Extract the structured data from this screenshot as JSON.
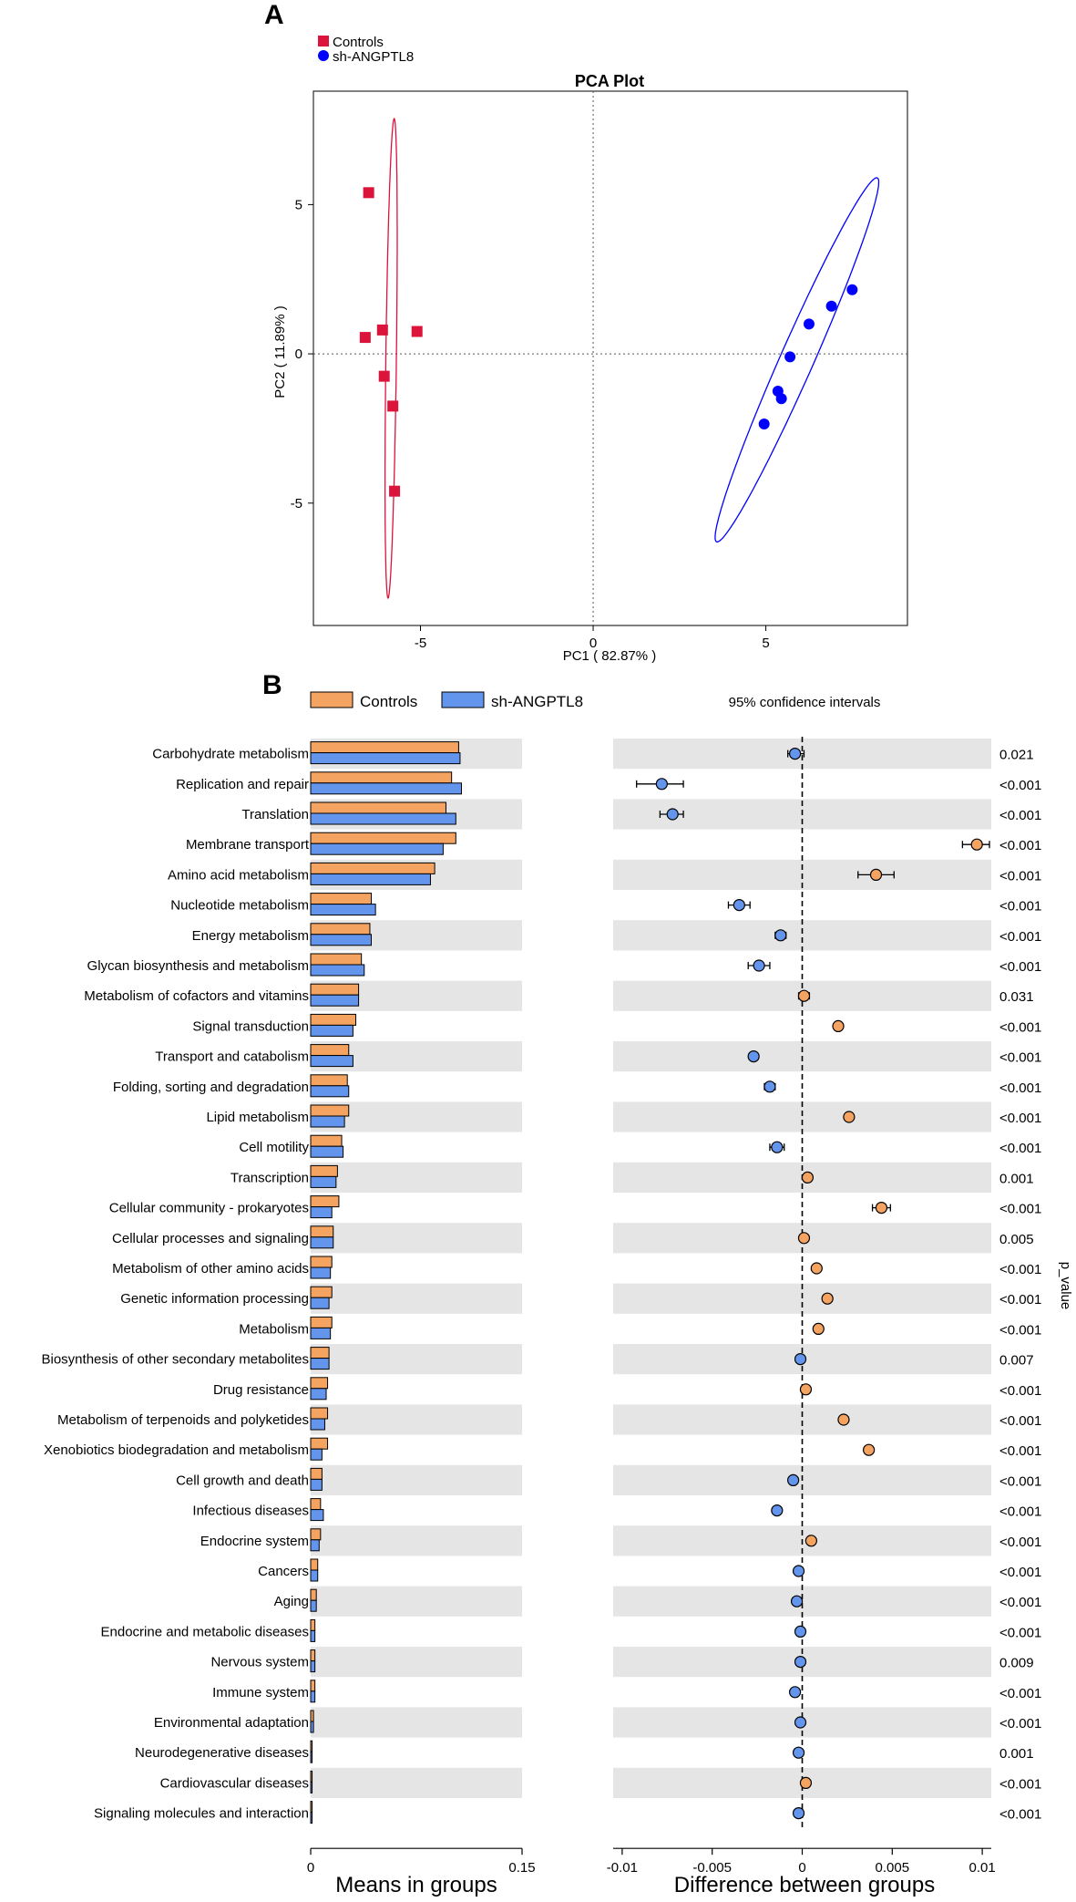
{
  "panel_a_label": "A",
  "panel_b_label": "B",
  "colors": {
    "controls_square": "#dc143c",
    "sh_dot": "#0000ff",
    "controls_bar": "#f4a460",
    "sh_bar": "#6495ed",
    "stripe": "#e5e5e5"
  },
  "chart_data": [
    {
      "type": "scatter",
      "title": "PCA Plot",
      "xlabel": "PC1 ( 82.87% )",
      "ylabel": "PC2 ( 11.89% )",
      "xlim": [
        -8.1,
        9.1
      ],
      "ylim": [
        -9.1,
        8.8
      ],
      "xticks": [
        -5,
        0,
        5
      ],
      "yticks": [
        -5,
        0,
        5
      ],
      "xtick_labels": [
        "-5",
        "0",
        "5"
      ],
      "ytick_labels": [
        "-5",
        "0",
        "5"
      ],
      "legend": [
        "Controls",
        "sh-ANGPTL8"
      ],
      "series": [
        {
          "name": "Controls",
          "marker": "square",
          "points": [
            [
              -6.5,
              5.4
            ],
            [
              -6.6,
              0.55
            ],
            [
              -6.1,
              0.8
            ],
            [
              -5.1,
              0.75
            ],
            [
              -6.05,
              -0.75
            ],
            [
              -5.8,
              -1.75
            ],
            [
              -5.75,
              -4.6
            ]
          ],
          "ellipse": [
            [
              -5.4,
              4.1
            ],
            [
              -6.0,
              0.0
            ],
            [
              -6.3,
              -3.5
            ],
            [
              -5.9,
              -8.2
            ],
            [
              -5.2,
              1.0
            ],
            [
              -4.9,
              -3.0
            ],
            [
              -6.85,
              7.9
            ],
            [
              -6.45,
              3.6
            ]
          ]
        },
        {
          "name": "sh-ANGPTL8",
          "marker": "circle",
          "points": [
            [
              7.5,
              2.15
            ],
            [
              6.9,
              1.6
            ],
            [
              6.25,
              1.0
            ],
            [
              5.7,
              -0.1
            ],
            [
              5.35,
              -1.25
            ],
            [
              5.45,
              -1.5
            ],
            [
              4.95,
              -2.35
            ]
          ],
          "ellipse": [
            [
              8.35,
              4.6
            ],
            [
              3.45,
              -5.0
            ],
            [
              7.3,
              1.2
            ],
            [
              4.6,
              -1.5
            ],
            [
              3.7,
              -3.8
            ],
            [
              8.0,
              2.9
            ]
          ]
        }
      ]
    },
    {
      "type": "bar",
      "orientation": "horizontal",
      "xlabel": "Means in groups",
      "xlim": [
        0,
        0.15
      ],
      "xtick_labels": [
        "0",
        "0.15"
      ],
      "legend": [
        "Controls",
        "sh-ANGPTL8"
      ],
      "categories": [
        "Carbohydrate metabolism",
        "Replication and repair",
        "Translation",
        "Membrane transport",
        "Amino acid metabolism",
        "Nucleotide metabolism",
        "Energy metabolism",
        "Glycan biosynthesis and metabolism",
        "Metabolism of cofactors and vitamins",
        "Signal transduction",
        "Transport and catabolism",
        "Folding, sorting and degradation",
        "Lipid metabolism",
        "Cell motility",
        "Transcription",
        "Cellular community - prokaryotes",
        "Cellular processes and signaling",
        "Metabolism of other amino acids",
        "Genetic information processing",
        "Metabolism",
        "Biosynthesis of other secondary metabolites",
        "Drug resistance",
        "Metabolism of terpenoids and polyketides",
        "Xenobiotics biodegradation and metabolism",
        "Cell growth and death",
        "Infectious diseases",
        "Endocrine system",
        "Cancers",
        "Aging",
        "Endocrine and metabolic diseases",
        "Nervous system",
        "Immune system",
        "Environmental adaptation",
        "Neurodegenerative diseases",
        "Cardiovascular diseases",
        "Signaling molecules and interaction"
      ],
      "series": [
        {
          "name": "Controls",
          "values": [
            0.105,
            0.1,
            0.096,
            0.103,
            0.088,
            0.043,
            0.042,
            0.036,
            0.034,
            0.032,
            0.027,
            0.026,
            0.027,
            0.022,
            0.019,
            0.02,
            0.016,
            0.015,
            0.015,
            0.015,
            0.013,
            0.012,
            0.012,
            0.012,
            0.008,
            0.007,
            0.007,
            0.005,
            0.004,
            0.003,
            0.003,
            0.003,
            0.002,
            0.001,
            0.001,
            0.001
          ]
        },
        {
          "name": "sh-ANGPTL8",
          "values": [
            0.106,
            0.107,
            0.103,
            0.094,
            0.085,
            0.046,
            0.043,
            0.038,
            0.034,
            0.03,
            0.03,
            0.027,
            0.024,
            0.023,
            0.018,
            0.015,
            0.016,
            0.014,
            0.013,
            0.014,
            0.013,
            0.011,
            0.01,
            0.008,
            0.008,
            0.009,
            0.006,
            0.005,
            0.004,
            0.003,
            0.003,
            0.003,
            0.002,
            0.001,
            0.001,
            0.001
          ]
        }
      ]
    },
    {
      "type": "scatter",
      "subtype": "error-bar",
      "title": "95% confidence intervals",
      "xlabel": "Difference between groups",
      "ylabel": "p_value",
      "xlim": [
        -0.0105,
        0.0105
      ],
      "xticks": [
        -0.01,
        -0.005,
        0,
        0.005,
        0.01
      ],
      "xtick_labels": [
        "-0.01",
        "-0.005",
        "0",
        "0.005",
        "0.01"
      ],
      "points": [
        {
          "est": -0.0004,
          "lo": -0.0008,
          "hi": 0.0001,
          "p": "0.021"
        },
        {
          "est": -0.0078,
          "lo": -0.0092,
          "hi": -0.0066,
          "p": "<0.001"
        },
        {
          "est": -0.0072,
          "lo": -0.0079,
          "hi": -0.0066,
          "p": "<0.001"
        },
        {
          "est": 0.0097,
          "lo": 0.0089,
          "hi": 0.0104,
          "p": "<0.001"
        },
        {
          "est": 0.0041,
          "lo": 0.0031,
          "hi": 0.0051,
          "p": "<0.001"
        },
        {
          "est": -0.0035,
          "lo": -0.0041,
          "hi": -0.0029,
          "p": "<0.001"
        },
        {
          "est": -0.0012,
          "lo": -0.0015,
          "hi": -0.0009,
          "p": "<0.001"
        },
        {
          "est": -0.0024,
          "lo": -0.003,
          "hi": -0.0018,
          "p": "<0.001"
        },
        {
          "est": 0.0001,
          "lo": -0.0002,
          "hi": 0.0004,
          "p": "0.031"
        },
        {
          "est": 0.002,
          "lo": 0.0018,
          "hi": 0.0022,
          "p": "<0.001"
        },
        {
          "est": -0.0027,
          "lo": -0.0029,
          "hi": -0.0025,
          "p": "<0.001"
        },
        {
          "est": -0.0018,
          "lo": -0.0021,
          "hi": -0.0015,
          "p": "<0.001"
        },
        {
          "est": 0.0026,
          "lo": 0.0024,
          "hi": 0.0028,
          "p": "<0.001"
        },
        {
          "est": -0.0014,
          "lo": -0.0018,
          "hi": -0.001,
          "p": "<0.001"
        },
        {
          "est": 0.0003,
          "lo": 0.0001,
          "hi": 0.0005,
          "p": "0.001"
        },
        {
          "est": 0.0044,
          "lo": 0.0039,
          "hi": 0.0049,
          "p": "<0.001"
        },
        {
          "est": 0.0001,
          "lo": -0.0001,
          "hi": 0.0003,
          "p": "0.005"
        },
        {
          "est": 0.0008,
          "lo": 0.0006,
          "hi": 0.001,
          "p": "<0.001"
        },
        {
          "est": 0.0014,
          "lo": 0.0012,
          "hi": 0.0016,
          "p": "<0.001"
        },
        {
          "est": 0.0009,
          "lo": 0.0007,
          "hi": 0.0011,
          "p": "<0.001"
        },
        {
          "est": -0.0001,
          "lo": -0.0003,
          "hi": 0.0001,
          "p": "0.007"
        },
        {
          "est": 0.0002,
          "lo": 0.0,
          "hi": 0.0004,
          "p": "<0.001"
        },
        {
          "est": 0.0023,
          "lo": 0.0021,
          "hi": 0.0025,
          "p": "<0.001"
        },
        {
          "est": 0.0037,
          "lo": 0.0035,
          "hi": 0.0039,
          "p": "<0.001"
        },
        {
          "est": -0.0005,
          "lo": -0.0007,
          "hi": -0.0003,
          "p": "<0.001"
        },
        {
          "est": -0.0014,
          "lo": -0.0016,
          "hi": -0.0012,
          "p": "<0.001"
        },
        {
          "est": 0.0005,
          "lo": 0.0003,
          "hi": 0.0007,
          "p": "<0.001"
        },
        {
          "est": -0.0002,
          "lo": -0.0004,
          "hi": 0.0,
          "p": "<0.001"
        },
        {
          "est": -0.0003,
          "lo": -0.0005,
          "hi": -0.0001,
          "p": "<0.001"
        },
        {
          "est": -0.0001,
          "lo": -0.0003,
          "hi": 0.0001,
          "p": "<0.001"
        },
        {
          "est": -0.0001,
          "lo": -0.0003,
          "hi": 0.0001,
          "p": "0.009"
        },
        {
          "est": -0.0004,
          "lo": -0.0006,
          "hi": -0.0002,
          "p": "<0.001"
        },
        {
          "est": -0.0001,
          "lo": -0.0003,
          "hi": 0.0001,
          "p": "<0.001"
        },
        {
          "est": -0.0002,
          "lo": -0.0004,
          "hi": 0.0,
          "p": "0.001"
        },
        {
          "est": 0.0002,
          "lo": 0.0,
          "hi": 0.0004,
          "p": "<0.001"
        },
        {
          "est": -0.0002,
          "lo": -0.0004,
          "hi": 0.0,
          "p": "<0.001"
        }
      ]
    }
  ]
}
